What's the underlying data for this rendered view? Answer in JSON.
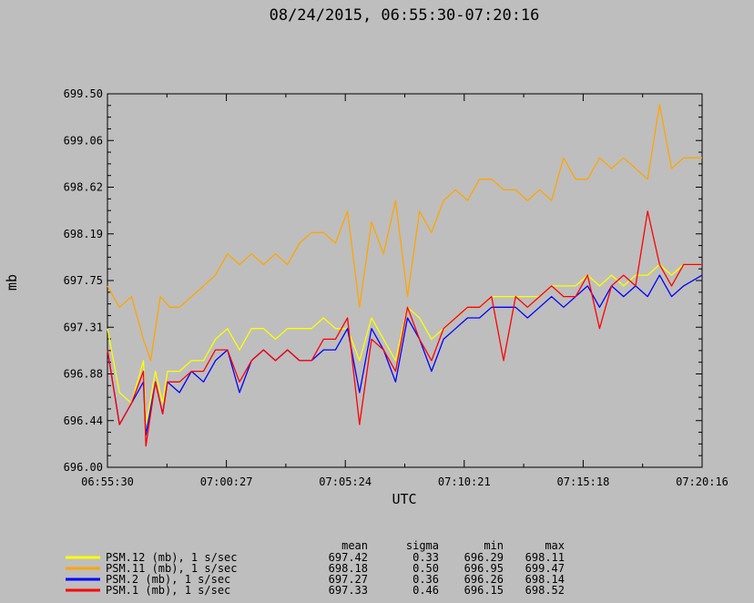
{
  "chart_data": {
    "type": "line",
    "title": "08/24/2015, 06:55:30-07:20:16",
    "xlabel": "UTC",
    "ylabel": "mb",
    "ylim": [
      696.0,
      699.5
    ],
    "yticks": [
      "696.00",
      "696.44",
      "696.88",
      "697.31",
      "697.75",
      "698.19",
      "698.62",
      "699.06",
      "699.50"
    ],
    "xticks": [
      "06:55:30",
      "07:00:27",
      "07:05:24",
      "07:10:21",
      "07:15:18",
      "07:20:16"
    ],
    "x_unit": "minutes since 06:55:30 (0 to 24.77)",
    "xlim": [
      0,
      24.77
    ],
    "legend_headers": [
      "mean",
      "sigma",
      "min",
      "max"
    ],
    "series": [
      {
        "name": "PSM.12 (mb), 1 s/sec",
        "color": "#ffff00",
        "mean": "697.42",
        "sigma": "0.33",
        "min": "696.29",
        "max": "698.11",
        "x": [
          0,
          0.5,
          1,
          1.5,
          1.6,
          2,
          2.3,
          2.5,
          3,
          3.5,
          4,
          4.5,
          5,
          5.5,
          6,
          6.5,
          7,
          7.5,
          8,
          8.5,
          9,
          9.5,
          10,
          10.5,
          11,
          11.5,
          12,
          12.5,
          13,
          13.5,
          14,
          14.5,
          15,
          15.5,
          16,
          16.5,
          17,
          17.5,
          18,
          18.5,
          19,
          19.5,
          20,
          20.5,
          21,
          21.5,
          22,
          22.5,
          23,
          23.5,
          24,
          24.77
        ],
        "y": [
          697.3,
          696.7,
          696.6,
          697.0,
          696.4,
          696.9,
          696.6,
          696.9,
          696.9,
          697.0,
          697.0,
          697.2,
          697.3,
          697.1,
          697.3,
          697.3,
          697.2,
          697.3,
          697.3,
          697.3,
          697.4,
          697.3,
          697.3,
          697.0,
          697.4,
          697.2,
          697.0,
          697.5,
          697.4,
          697.2,
          697.3,
          697.4,
          697.5,
          697.5,
          697.6,
          697.6,
          697.6,
          697.6,
          697.6,
          697.7,
          697.7,
          697.7,
          697.8,
          697.7,
          697.8,
          697.7,
          697.8,
          697.8,
          697.9,
          697.8,
          697.9,
          697.9
        ]
      },
      {
        "name": "PSM.11 (mb), 1 s/sec",
        "color": "#ffa500",
        "mean": "698.18",
        "sigma": "0.50",
        "min": "696.95",
        "max": "699.47",
        "x": [
          0,
          0.5,
          1,
          1.5,
          1.8,
          2.2,
          2.6,
          3,
          3.5,
          4,
          4.5,
          5,
          5.5,
          6,
          6.5,
          7,
          7.5,
          8,
          8.5,
          9,
          9.5,
          10,
          10.5,
          11,
          11.5,
          12,
          12.5,
          13,
          13.5,
          14,
          14.5,
          15,
          15.5,
          16,
          16.5,
          17,
          17.5,
          18,
          18.5,
          19,
          19.5,
          20,
          20.5,
          21,
          21.5,
          22,
          22.5,
          23,
          23.5,
          24,
          24.77
        ],
        "y": [
          697.7,
          697.5,
          697.6,
          697.2,
          697.0,
          697.6,
          697.5,
          697.5,
          697.6,
          697.7,
          697.8,
          698.0,
          697.9,
          698.0,
          697.9,
          698.0,
          697.9,
          698.1,
          698.2,
          698.2,
          698.1,
          698.4,
          697.5,
          698.3,
          698.0,
          698.5,
          697.6,
          698.4,
          698.2,
          698.5,
          698.6,
          698.5,
          698.7,
          698.7,
          698.6,
          698.6,
          698.5,
          698.6,
          698.5,
          698.9,
          698.7,
          698.7,
          698.9,
          698.8,
          698.9,
          698.8,
          698.7,
          699.4,
          698.8,
          698.9,
          698.9
        ]
      },
      {
        "name": "PSM.2 (mb), 1 s/sec",
        "color": "#0000ff",
        "mean": "697.27",
        "sigma": "0.36",
        "min": "696.26",
        "max": "698.14",
        "x": [
          0,
          0.5,
          1,
          1.5,
          1.6,
          2,
          2.3,
          2.5,
          3,
          3.5,
          4,
          4.5,
          5,
          5.5,
          6,
          6.5,
          7,
          7.5,
          8,
          8.5,
          9,
          9.5,
          10,
          10.5,
          11,
          11.5,
          12,
          12.5,
          13,
          13.5,
          14,
          14.5,
          15,
          15.5,
          16,
          16.5,
          17,
          17.5,
          18,
          18.5,
          19,
          19.5,
          20,
          20.5,
          21,
          21.5,
          22,
          22.5,
          23,
          23.5,
          24,
          24.77
        ],
        "y": [
          697.1,
          696.4,
          696.6,
          696.8,
          696.3,
          696.8,
          696.5,
          696.8,
          696.7,
          696.9,
          696.8,
          697.0,
          697.1,
          696.7,
          697.0,
          697.1,
          697.0,
          697.1,
          697.0,
          697.0,
          697.1,
          697.1,
          697.3,
          696.7,
          697.3,
          697.1,
          696.8,
          697.4,
          697.2,
          696.9,
          697.2,
          697.3,
          697.4,
          697.4,
          697.5,
          697.5,
          697.5,
          697.4,
          697.5,
          697.6,
          697.5,
          697.6,
          697.7,
          697.5,
          697.7,
          697.6,
          697.7,
          697.6,
          697.8,
          697.6,
          697.7,
          697.8
        ]
      },
      {
        "name": "PSM.1 (mb), 1 s/sec",
        "color": "#ff0000",
        "mean": "697.33",
        "sigma": "0.46",
        "min": "696.15",
        "max": "698.52",
        "x": [
          0,
          0.5,
          1,
          1.5,
          1.6,
          2,
          2.3,
          2.5,
          3,
          3.5,
          4,
          4.5,
          5,
          5.5,
          6,
          6.5,
          7,
          7.5,
          8,
          8.5,
          9,
          9.5,
          10,
          10.5,
          11,
          11.5,
          12,
          12.5,
          13,
          13.5,
          14,
          14.5,
          15,
          15.5,
          16,
          16.5,
          17,
          17.5,
          18,
          18.5,
          19,
          19.5,
          20,
          20.5,
          21,
          21.5,
          22,
          22.5,
          23,
          23.5,
          24,
          24.77
        ],
        "y": [
          697.1,
          696.4,
          696.6,
          696.9,
          696.2,
          696.8,
          696.5,
          696.8,
          696.8,
          696.9,
          696.9,
          697.1,
          697.1,
          696.8,
          697.0,
          697.1,
          697.0,
          697.1,
          697.0,
          697.0,
          697.2,
          697.2,
          697.4,
          696.4,
          697.2,
          697.1,
          696.9,
          697.5,
          697.2,
          697.0,
          697.3,
          697.4,
          697.5,
          697.5,
          697.6,
          697.0,
          697.6,
          697.5,
          697.6,
          697.7,
          697.6,
          697.6,
          697.8,
          697.3,
          697.7,
          697.8,
          697.7,
          698.4,
          697.9,
          697.7,
          697.9,
          697.9
        ]
      }
    ]
  }
}
